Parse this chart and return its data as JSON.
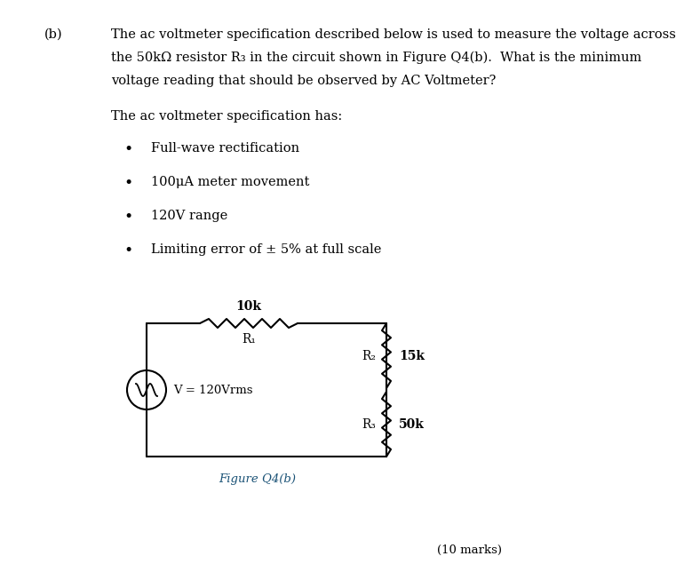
{
  "label_b": "(b)",
  "line1": "The ac voltmeter specification described below is used to measure the voltage across",
  "line2": "the 50kΩ resistor R₃ in the circuit shown in Figure Q4(b).  What is the minimum",
  "line3": "voltage reading that should be observed by AC Voltmeter?",
  "line4": "The ac voltmeter specification has:",
  "bullets": [
    "Full-wave rectification",
    "100μA meter movement",
    "120V range",
    "Limiting error of ± 5% at full scale"
  ],
  "fig_caption": "Figure Q4(b)",
  "marks": "(10 marks)",
  "R1_top": "10k",
  "R1_bot": "R₁",
  "R2_label": "R₂",
  "R2_val": "15k",
  "R3_label": "R₃",
  "R3_val": "50k",
  "V_label": "V = 120Vrms",
  "text_color": "#000000",
  "blue_color": "#1a5276",
  "bg_color": "#ffffff",
  "fs_body": 10.5,
  "fs_small": 9.5,
  "fs_circuit": 10
}
